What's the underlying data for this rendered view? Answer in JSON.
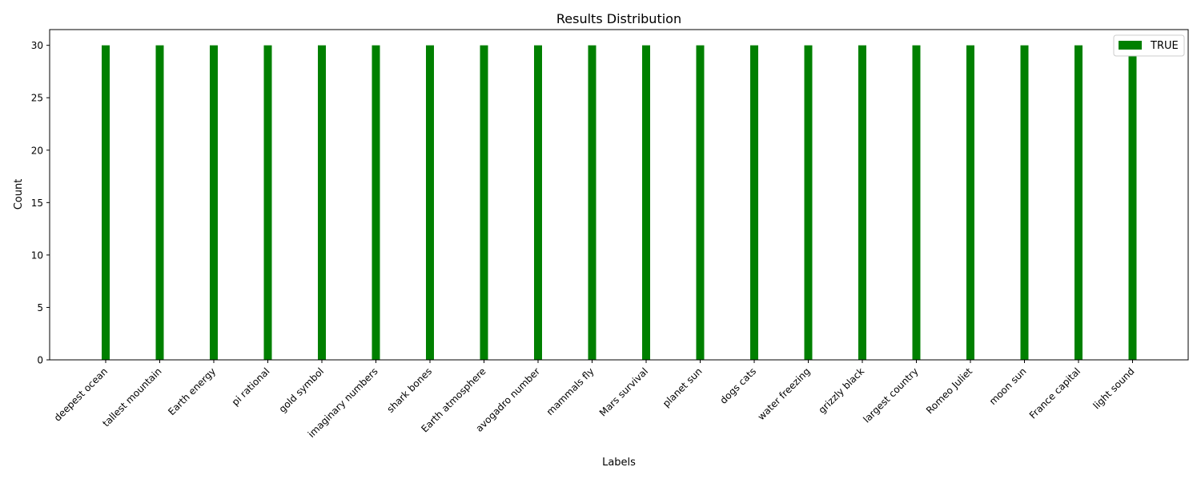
{
  "chart_data": {
    "type": "bar",
    "title": "Results Distribution",
    "xlabel": "Labels",
    "ylabel": "Count",
    "categories": [
      "deepest ocean",
      "tallest mountain",
      "Earth energy",
      "pi rational",
      "gold symbol",
      "imaginary numbers",
      "shark bones",
      "Earth atmosphere",
      "avogadro number",
      "mammals fly",
      "Mars survival",
      "planet sun",
      "dogs cats",
      "water freezing",
      "grizzly black",
      "largest country",
      "Romeo Juliet",
      "moon sun",
      "France capital",
      "light sound"
    ],
    "series": [
      {
        "name": "TRUE",
        "color": "#008000",
        "values": [
          30,
          30,
          30,
          30,
          30,
          30,
          30,
          30,
          30,
          30,
          30,
          30,
          30,
          30,
          30,
          30,
          30,
          30,
          30,
          30
        ]
      }
    ],
    "ylim": [
      0,
      31.5
    ],
    "yticks": [
      0,
      5,
      10,
      15,
      20,
      25,
      30
    ],
    "grid": false,
    "legend_position": "top-right"
  }
}
